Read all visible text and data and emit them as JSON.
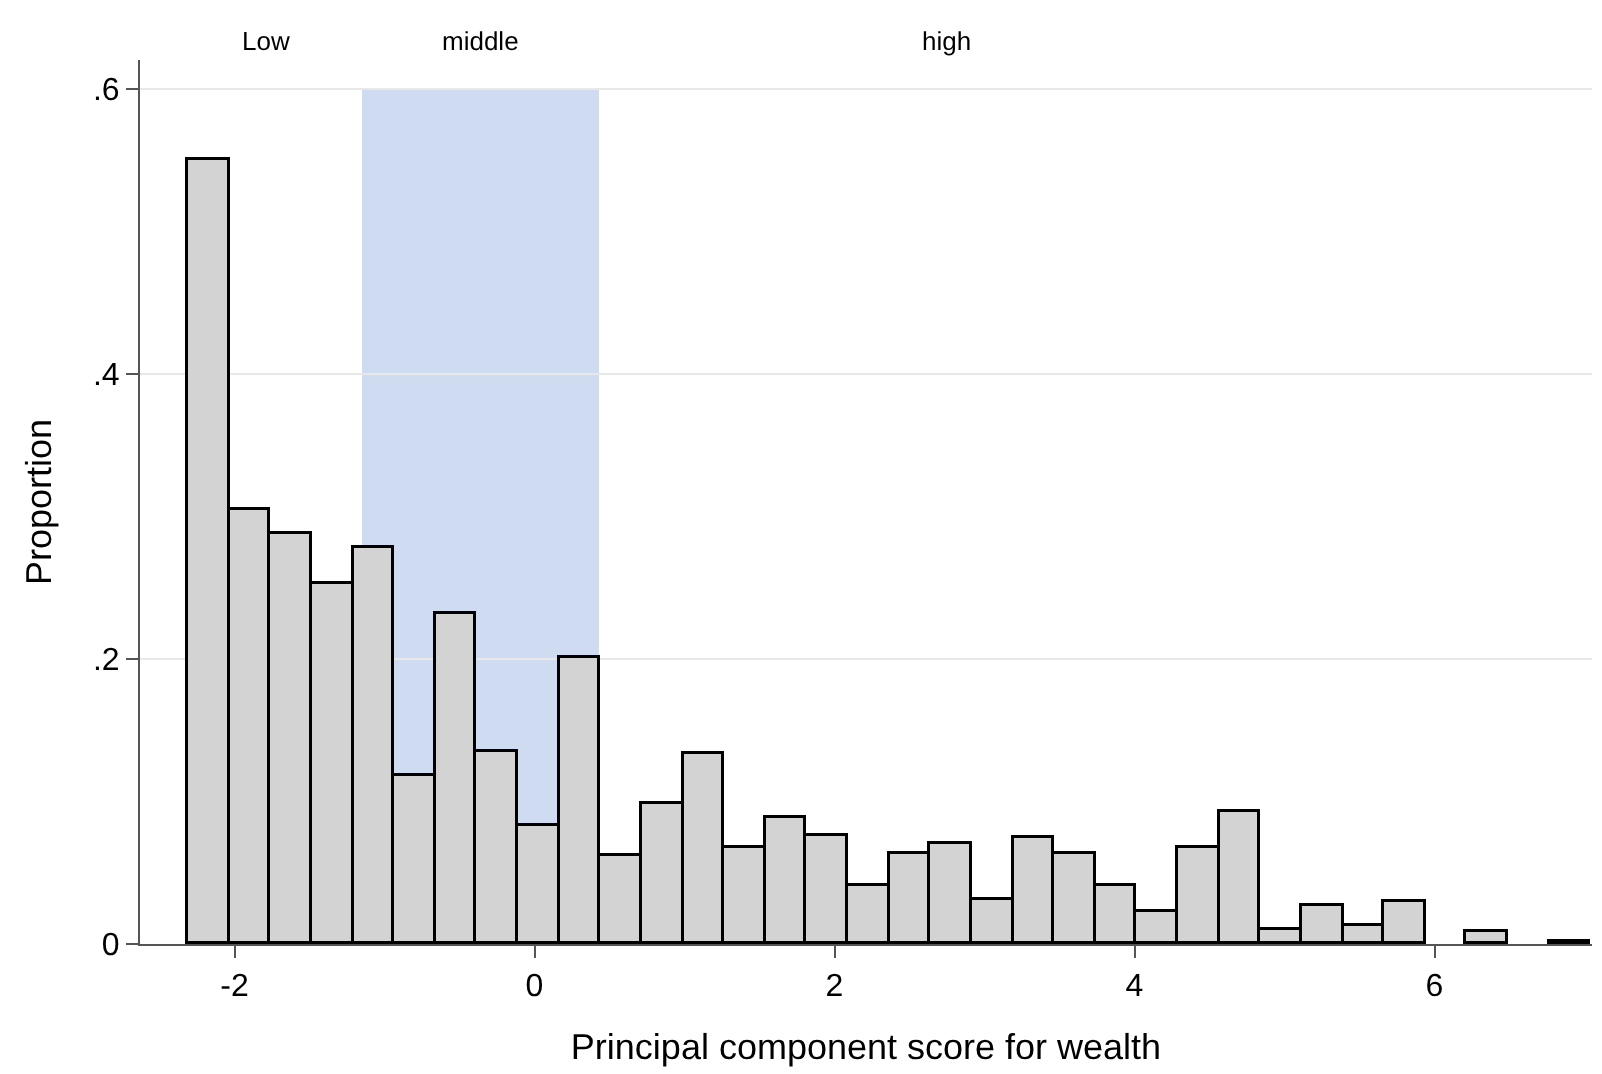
{
  "chart_data": {
    "type": "histogram",
    "xlabel": "Principal component score for wealth",
    "ylabel": "Proportion",
    "bins": [
      -2.31,
      -2.035,
      -1.76,
      -1.485,
      -1.21,
      -0.935,
      -0.66,
      -0.385,
      -0.11,
      0.165,
      0.44,
      0.715,
      0.99,
      1.265,
      1.54,
      1.815,
      2.09,
      2.365,
      2.64,
      2.915,
      3.19,
      3.465,
      3.74,
      4.015,
      4.29,
      4.565,
      4.84,
      5.115,
      5.39,
      5.665,
      5.94,
      6.215,
      6.49,
      6.765,
      7.04
    ],
    "values": [
      0.55,
      0.305,
      0.288,
      0.253,
      0.278,
      0.118,
      0.232,
      0.134,
      0.083,
      0.2,
      0.062,
      0.098,
      0.133,
      0.068,
      0.088,
      0.076,
      0.041,
      0.063,
      0.07,
      0.031,
      0.075,
      0.063,
      0.041,
      0.023,
      0.068,
      0.093,
      0.01,
      0.026,
      0.013,
      0.029,
      0,
      0.008,
      0,
      0.002
    ],
    "color": "#d3d3d3",
    "xlim": [
      -2.63,
      7.05
    ],
    "ylim": [
      0,
      0.62
    ],
    "xticks": [
      -2,
      0,
      2,
      4,
      6
    ],
    "yticks": [
      0,
      {
        "value": 0.2,
        "label": ".2"
      },
      {
        "value": 0.4,
        "label": ".4"
      },
      {
        "value": 0.6,
        "label": ".6"
      }
    ],
    "grid": "y",
    "bands": [
      {
        "axis": "x",
        "from": -1.15,
        "to": 0.43,
        "label": "middle",
        "color": "#c9d7ef"
      }
    ],
    "annotations": [
      "Low",
      "high"
    ]
  }
}
